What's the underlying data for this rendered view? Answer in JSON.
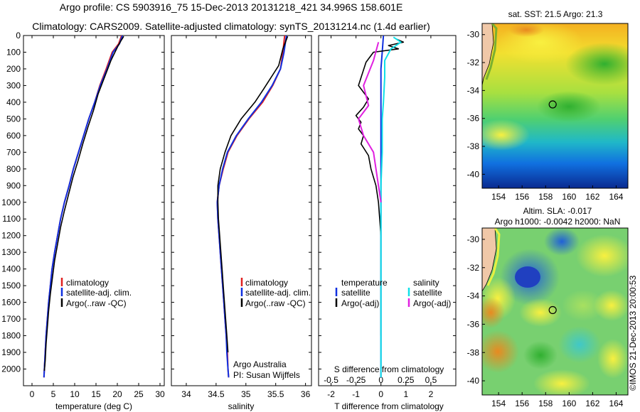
{
  "header": {
    "line1": "Argo profile: CS 5903916_75 15-Dec-2013 20131218_421 34.996S 158.601E",
    "line2": "Climatology: CARS2009. Satellite-adjusted climatology: synTS_20131214.nc (1.4d earlier)"
  },
  "side_label": "©IMOS 21-Dec-2013 20:00:53",
  "colors": {
    "climatology": "#e02020",
    "satellite": "#1030e0",
    "argo": "#000000",
    "salinity_satellite": "#10e0e8",
    "salinity_argo": "#e020e0",
    "land": "#f0c8a8"
  },
  "chart_data": [
    {
      "type": "line",
      "xlabel": "temperature (deg C)",
      "ylabel": "",
      "xlim": [
        -2,
        31
      ],
      "ylim": [
        2100,
        0
      ],
      "x_ticks": [
        0,
        5,
        10,
        15,
        20,
        25,
        30
      ],
      "y_ticks": [
        0,
        100,
        200,
        300,
        400,
        500,
        600,
        700,
        800,
        900,
        1000,
        1100,
        1200,
        1300,
        1400,
        1500,
        1600,
        1700,
        1800,
        1900,
        2000
      ],
      "legend": [
        "climatology",
        "satellite-adj. clim.",
        "Argo(..raw -QC)"
      ],
      "legend_position": "lower-right",
      "series": [
        {
          "name": "climatology",
          "color_key": "climatology",
          "x": [
            21.0,
            20.3,
            18.8,
            17.4,
            15.9,
            14.7,
            13.3,
            12.1,
            10.9,
            9.7,
            8.7,
            7.6,
            6.7,
            6.0,
            5.3,
            4.7,
            4.3,
            3.9,
            3.6,
            3.3,
            3.1,
            2.9,
            2.8
          ],
          "y": [
            0,
            50,
            100,
            200,
            300,
            400,
            500,
            600,
            700,
            800,
            900,
            1000,
            1100,
            1200,
            1300,
            1400,
            1500,
            1600,
            1700,
            1800,
            1900,
            2000,
            2050
          ]
        },
        {
          "name": "satellite-adj. clim.",
          "color_key": "satellite",
          "x": [
            21.2,
            20.5,
            19.0,
            17.6,
            16.0,
            14.7,
            13.3,
            12.1,
            10.9,
            9.7,
            8.7,
            7.6,
            6.7,
            6.0,
            5.3,
            4.7,
            4.3,
            3.9,
            3.6,
            3.3,
            3.1,
            2.9,
            2.8
          ],
          "y": [
            0,
            50,
            100,
            200,
            300,
            400,
            500,
            600,
            700,
            800,
            900,
            1000,
            1100,
            1200,
            1300,
            1400,
            1500,
            1600,
            1700,
            1800,
            1900,
            2000,
            2050
          ]
        },
        {
          "name": "Argo(..raw -QC)",
          "color_key": "argo",
          "x": [
            21.5,
            21.0,
            20.2,
            18.5,
            17.0,
            15.5,
            14.4,
            13.1,
            11.9,
            10.8,
            9.6,
            8.6,
            7.6,
            6.7,
            6.0,
            5.3,
            4.8,
            4.3,
            3.9,
            3.6,
            3.3,
            3.1,
            2.9
          ],
          "y": [
            5,
            25,
            60,
            150,
            250,
            350,
            450,
            550,
            650,
            750,
            850,
            950,
            1050,
            1150,
            1250,
            1350,
            1450,
            1550,
            1650,
            1750,
            1850,
            1950,
            2010
          ]
        }
      ]
    },
    {
      "type": "line",
      "xlabel": "salinity",
      "ylabel": "",
      "xlim": [
        33.75,
        36.1
      ],
      "ylim": [
        2100,
        0
      ],
      "x_ticks": [
        34,
        34.5,
        35,
        35.5,
        36
      ],
      "legend": [
        "climatology",
        "satellite-adj. clim.",
        "Argo(..raw -QC)"
      ],
      "legend_position": "lower-right",
      "annotation": [
        "Argo Australia",
        "PI: Susan Wijffels"
      ],
      "series": [
        {
          "name": "climatology",
          "color_key": "climatology",
          "x": [
            35.65,
            35.62,
            35.58,
            35.45,
            35.28,
            35.05,
            34.85,
            34.7,
            34.62,
            34.55,
            34.52,
            34.53,
            34.55,
            34.57,
            34.59,
            34.61,
            34.63,
            34.65,
            34.67,
            34.69,
            34.7,
            34.71
          ],
          "y": [
            0,
            100,
            200,
            300,
            400,
            500,
            600,
            700,
            800,
            900,
            1000,
            1100,
            1200,
            1300,
            1400,
            1500,
            1600,
            1700,
            1800,
            1900,
            2000,
            2050
          ]
        },
        {
          "name": "satellite-adj. clim.",
          "color_key": "satellite",
          "x": [
            35.68,
            35.64,
            35.58,
            35.44,
            35.26,
            35.04,
            34.84,
            34.69,
            34.61,
            34.55,
            34.52,
            34.53,
            34.55,
            34.57,
            34.59,
            34.61,
            34.63,
            34.65,
            34.67,
            34.68,
            34.7,
            34.71
          ],
          "y": [
            0,
            100,
            200,
            300,
            400,
            500,
            600,
            700,
            800,
            900,
            1000,
            1100,
            1200,
            1300,
            1400,
            1500,
            1600,
            1700,
            1800,
            1900,
            2000,
            2050
          ]
        },
        {
          "name": "Argo(..raw -QC)",
          "color_key": "argo",
          "x": [
            35.7,
            35.62,
            35.55,
            35.3,
            35.15,
            34.92,
            34.75,
            34.65,
            34.57,
            34.53,
            34.53,
            34.54,
            34.56,
            34.58,
            34.6,
            34.62,
            34.64,
            34.66,
            34.68,
            34.7
          ],
          "y": [
            5,
            80,
            180,
            320,
            400,
            500,
            600,
            700,
            800,
            900,
            1000,
            1100,
            1200,
            1300,
            1400,
            1500,
            1600,
            1700,
            1800,
            1900
          ]
        }
      ]
    },
    {
      "type": "line",
      "xlabel": "T difference from climatology",
      "ylabel": "",
      "xlim": [
        -2.5,
        3.0
      ],
      "ylim": [
        2100,
        0
      ],
      "x_ticks": [
        -2,
        -1,
        0,
        1,
        2
      ],
      "secondary_axis_label": "S difference from climatology",
      "secondary_ticks": [
        "-0.5",
        "-0.25",
        "0",
        "0.25",
        "0.5"
      ],
      "legend": [
        {
          "group": "temperature",
          "items": [
            "satellite",
            "Argo(-adj)"
          ]
        },
        {
          "group": "salinity",
          "items": [
            "satellite",
            "Argo(-adj)"
          ]
        }
      ],
      "legend_position": "lower-center",
      "series": [
        {
          "name": "temperature satellite",
          "color_key": "satellite",
          "x": [
            0.1,
            0.05,
            0.0,
            0.0,
            0.0,
            0.0,
            0.0,
            0.0,
            0.0,
            0.0,
            0.0,
            0.0,
            0.0
          ],
          "y": [
            0,
            100,
            200,
            400,
            600,
            800,
            1000,
            1200,
            1400,
            1600,
            1800,
            2000,
            2050
          ]
        },
        {
          "name": "temperature Argo(-adj)",
          "color_key": "argo",
          "x": [
            0.6,
            0.9,
            0.3,
            0.7,
            -0.3,
            -0.6,
            -0.9,
            -0.5,
            -0.7,
            -1.0,
            -0.8,
            -0.9,
            -0.7,
            -0.8,
            -0.5,
            -0.4,
            -0.2,
            -0.1,
            0.0,
            0.0,
            0.0,
            0.0
          ],
          "y": [
            20,
            40,
            60,
            80,
            100,
            160,
            300,
            380,
            430,
            480,
            520,
            560,
            600,
            650,
            720,
            800,
            900,
            1000,
            1200,
            1400,
            1600,
            1800
          ]
        },
        {
          "name": "salinity satellite",
          "color_key": "salinity_satellite",
          "x": [
            0.5,
            0.8,
            0.4,
            0.15,
            0.15,
            0.1,
            0.05,
            0.05,
            0.0,
            0.0,
            0.0,
            0.0,
            0.0,
            0.0,
            0.0
          ],
          "y": [
            10,
            40,
            80,
            150,
            250,
            400,
            500,
            700,
            900,
            1200,
            1500,
            1700,
            1900,
            2000,
            2050
          ]
        },
        {
          "name": "salinity Argo(-adj)",
          "color_key": "salinity_argo",
          "x": [
            -0.1,
            -0.3,
            -0.7,
            -0.5,
            -0.9,
            -0.7,
            -0.3,
            -0.2,
            -0.1,
            0.0
          ],
          "y": [
            40,
            150,
            300,
            420,
            500,
            600,
            700,
            800,
            900,
            1000
          ]
        }
      ]
    },
    {
      "type": "heatmap",
      "title": "sat. SST: 21.5 Argo: 21.3",
      "xlabel": "",
      "ylabel": "",
      "x_ticks": [
        154,
        156,
        158,
        160,
        162,
        164
      ],
      "y_ticks": [
        -30,
        -32,
        -34,
        -36,
        -38,
        -40
      ],
      "xlim": [
        152.6,
        165.0
      ],
      "ylim": [
        -41.0,
        -29.2
      ],
      "marker": {
        "lon": 158.6,
        "lat": -35.0
      }
    },
    {
      "type": "heatmap",
      "title": "Altim. SLA: -0.017",
      "subtitle": "Argo h1000: -0.0042 h2000: NaN",
      "xlabel": "",
      "ylabel": "",
      "x_ticks": [
        154,
        156,
        158,
        160,
        162,
        164
      ],
      "y_ticks": [
        -30,
        -32,
        -34,
        -36,
        -38,
        -40
      ],
      "xlim": [
        152.6,
        165.0
      ],
      "ylim": [
        -41.0,
        -29.2
      ],
      "marker": {
        "lon": 158.6,
        "lat": -35.0
      }
    }
  ]
}
